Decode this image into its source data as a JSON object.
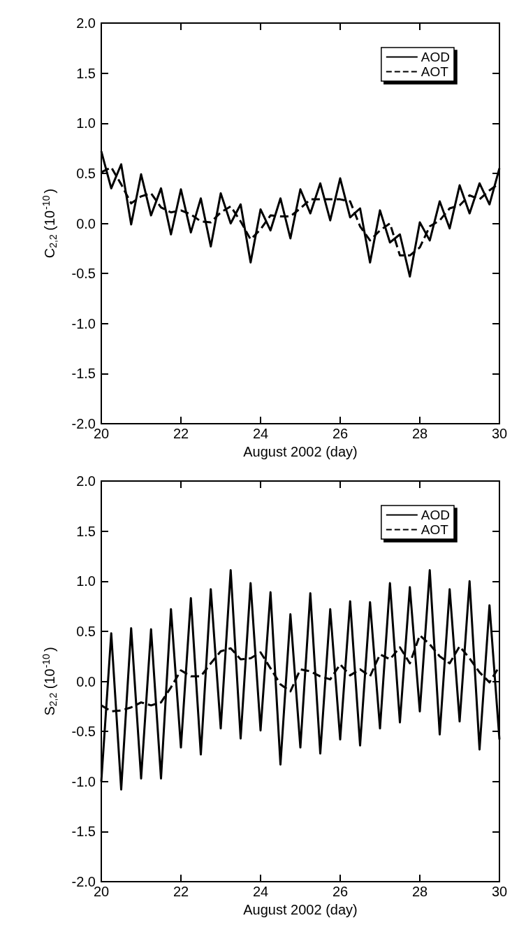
{
  "chart_data": [
    {
      "type": "line",
      "ylabel": "C$_{2,2}$ (10$^{-10}$)",
      "xlabel": "August 2002 (day)",
      "legend": "top right",
      "grid": false,
      "marker": "none",
      "xlim": [
        20,
        30
      ],
      "xticks": [
        20,
        22,
        24,
        26,
        28,
        30
      ],
      "ylim": [
        -2,
        2
      ],
      "yticks": [
        {
          "value": -2,
          "label": "-2.0"
        },
        -1.5,
        {
          "value": -1,
          "label": "-1.0"
        },
        -0.5,
        {
          "value": 0,
          "label": "0.0"
        },
        0.5,
        {
          "value": 1,
          "label": "1.0"
        },
        1.5,
        {
          "value": 2,
          "label": "2.0"
        }
      ],
      "x": [
        20,
        20.25,
        20.5,
        20.75,
        21,
        21.25,
        21.5,
        21.75,
        22,
        22.25,
        22.5,
        22.75,
        23,
        23.25,
        23.5,
        23.75,
        24,
        24.25,
        24.5,
        24.75,
        25,
        25.25,
        25.5,
        25.75,
        26,
        26.25,
        26.5,
        26.75,
        27,
        27.25,
        27.5,
        27.75,
        28,
        28.25,
        28.5,
        28.75,
        29,
        29.25,
        29.5,
        29.75,
        30
      ],
      "series": [
        {
          "name": "AOD",
          "color": "#000000",
          "line_style": "solid",
          "values": [
            0.72,
            0.35,
            0.59,
            -0.01,
            0.49,
            0.08,
            0.35,
            -0.11,
            0.34,
            -0.09,
            0.25,
            -0.23,
            0.3,
            0.0,
            0.19,
            -0.39,
            0.14,
            -0.07,
            0.25,
            -0.15,
            0.34,
            0.1,
            0.4,
            0.03,
            0.45,
            0.06,
            0.15,
            -0.39,
            0.13,
            -0.19,
            -0.11,
            -0.53,
            0.01,
            -0.17,
            0.22,
            -0.05,
            0.38,
            0.1,
            0.4,
            0.19,
            0.55
          ]
        },
        {
          "name": "AOT",
          "color": "#000000",
          "line_style": "dashed",
          "values": [
            0.51,
            0.56,
            0.39,
            0.2,
            0.27,
            0.3,
            0.16,
            0.11,
            0.13,
            0.09,
            0.02,
            0.01,
            0.11,
            0.17,
            0.02,
            -0.16,
            -0.06,
            0.08,
            0.07,
            0.07,
            0.15,
            0.24,
            0.24,
            0.24,
            0.24,
            0.22,
            -0.03,
            -0.17,
            -0.07,
            0.0,
            -0.32,
            -0.32,
            -0.24,
            -0.03,
            0.03,
            0.15,
            0.18,
            0.28,
            0.24,
            0.33,
            0.4
          ]
        }
      ]
    },
    {
      "type": "line",
      "ylabel": "S$_{2,2}$ (10$^{-10}$)",
      "xlabel": "August 2002 (day)",
      "legend": "top right",
      "grid": false,
      "marker": "none",
      "xlim": [
        20,
        30
      ],
      "xticks": [
        20,
        22,
        24,
        26,
        28,
        30
      ],
      "ylim": [
        -2,
        2
      ],
      "yticks": [
        {
          "value": -2,
          "label": "-2.0"
        },
        -1.5,
        {
          "value": -1,
          "label": "-1.0"
        },
        -0.5,
        {
          "value": 0,
          "label": "0.0"
        },
        0.5,
        {
          "value": 1,
          "label": "1.0"
        },
        1.5,
        {
          "value": 2,
          "label": "2.0"
        }
      ],
      "x": [
        20,
        20.25,
        20.5,
        20.75,
        21,
        21.25,
        21.5,
        21.75,
        22,
        22.25,
        22.5,
        22.75,
        23,
        23.25,
        23.5,
        23.75,
        24,
        24.25,
        24.5,
        24.75,
        25,
        25.25,
        25.5,
        25.75,
        26,
        26.25,
        26.5,
        26.75,
        27,
        27.25,
        27.5,
        27.75,
        28,
        28.25,
        28.5,
        28.75,
        29,
        29.25,
        29.5,
        29.75,
        30
      ],
      "series": [
        {
          "name": "AOD",
          "color": "#000000",
          "line_style": "solid",
          "values": [
            -1.0,
            0.48,
            -1.08,
            0.53,
            -0.97,
            0.52,
            -0.97,
            0.72,
            -0.66,
            0.83,
            -0.73,
            0.92,
            -0.47,
            1.11,
            -0.57,
            0.98,
            -0.49,
            0.89,
            -0.83,
            0.67,
            -0.66,
            0.88,
            -0.72,
            0.72,
            -0.58,
            0.8,
            -0.64,
            0.79,
            -0.47,
            0.98,
            -0.41,
            0.94,
            -0.3,
            1.11,
            -0.53,
            0.92,
            -0.4,
            1.0,
            -0.68,
            0.76,
            -0.58
          ]
        },
        {
          "name": "AOT",
          "color": "#000000",
          "line_style": "dashed",
          "values": [
            -0.24,
            -0.3,
            -0.29,
            -0.26,
            -0.21,
            -0.24,
            -0.21,
            -0.06,
            0.11,
            0.05,
            0.05,
            0.18,
            0.3,
            0.33,
            0.22,
            0.23,
            0.29,
            0.13,
            -0.03,
            -0.1,
            0.12,
            0.1,
            0.05,
            0.02,
            0.17,
            0.06,
            0.12,
            0.05,
            0.27,
            0.22,
            0.34,
            0.18,
            0.46,
            0.37,
            0.25,
            0.18,
            0.35,
            0.23,
            0.09,
            -0.01,
            0.15
          ]
        }
      ]
    }
  ]
}
